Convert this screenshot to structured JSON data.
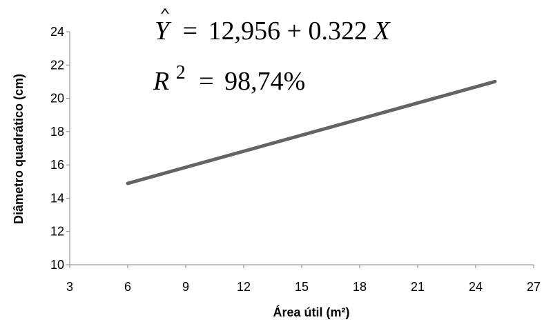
{
  "chart_data": {
    "type": "line",
    "xlabel": "Área útil (m²)",
    "ylabel": "Diâmetro quadrático (cm)",
    "xlim": [
      3,
      27
    ],
    "ylim": [
      10,
      24
    ],
    "x_ticks": [
      3,
      6,
      9,
      12,
      15,
      18,
      21,
      24,
      27
    ],
    "y_ticks": [
      10,
      12,
      14,
      16,
      18,
      20,
      22,
      24
    ],
    "x_tick_labels": [
      "3",
      "6",
      "9",
      "12",
      "15",
      "18",
      "21",
      "24",
      "27"
    ],
    "y_tick_labels": [
      "10",
      "12",
      "14",
      "16",
      "18",
      "20",
      "22",
      "24"
    ],
    "grid": false,
    "series": [
      {
        "x": [
          6,
          25
        ],
        "y": [
          14.888,
          21.006
        ],
        "color": "#646464"
      }
    ],
    "annotations": {
      "equation": {
        "lhs": "Y",
        "eq": "=",
        "rhs": "12,956 + 0.322",
        "var": "X"
      },
      "r2": {
        "lhs": "R",
        "sup": "2",
        "eq": "=",
        "value": "98,74%"
      }
    },
    "axis_color": "#808080"
  }
}
